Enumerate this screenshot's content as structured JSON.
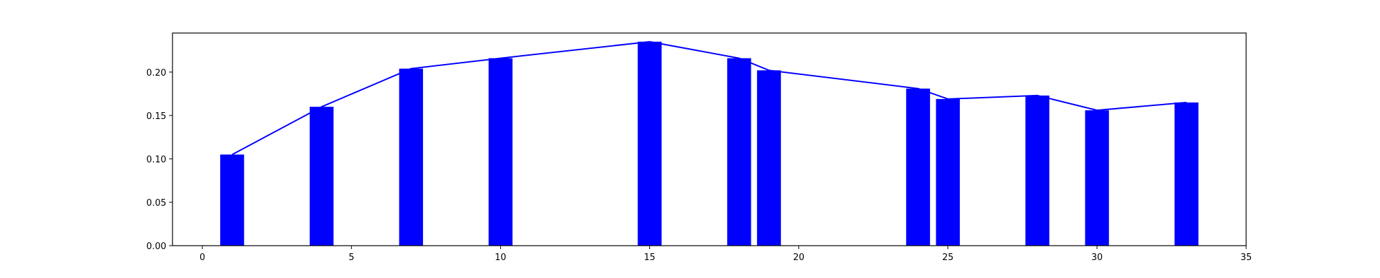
{
  "chart_data": {
    "type": "bar",
    "title": "",
    "xlabel": "",
    "ylabel": "",
    "xlim": [
      -1,
      35
    ],
    "ylim": [
      0,
      0.245
    ],
    "xticks": [
      0,
      5,
      10,
      15,
      20,
      25,
      30,
      35
    ],
    "yticks": [
      0.0,
      0.05,
      0.1,
      0.15,
      0.2
    ],
    "xtick_labels": [
      "0",
      "5",
      "10",
      "15",
      "20",
      "25",
      "30",
      "35"
    ],
    "ytick_labels": [
      "0.00",
      "0.05",
      "0.10",
      "0.15",
      "0.20"
    ],
    "grid": false,
    "bar_width": 0.8,
    "colors": {
      "bars": "#0000ff",
      "line": "#0000ff",
      "axes": "#000000"
    },
    "series": [
      {
        "type": "bar",
        "x": [
          1,
          4,
          7,
          10,
          15,
          18,
          19,
          24,
          25,
          28,
          30,
          33
        ],
        "values": [
          0.105,
          0.16,
          0.204,
          0.216,
          0.235,
          0.216,
          0.202,
          0.181,
          0.169,
          0.173,
          0.156,
          0.165
        ]
      },
      {
        "type": "line",
        "x": [
          1,
          4,
          7,
          10,
          15,
          18,
          19,
          24,
          25,
          28,
          30,
          33
        ],
        "values": [
          0.105,
          0.16,
          0.204,
          0.216,
          0.235,
          0.216,
          0.202,
          0.181,
          0.169,
          0.173,
          0.156,
          0.165
        ]
      }
    ]
  }
}
